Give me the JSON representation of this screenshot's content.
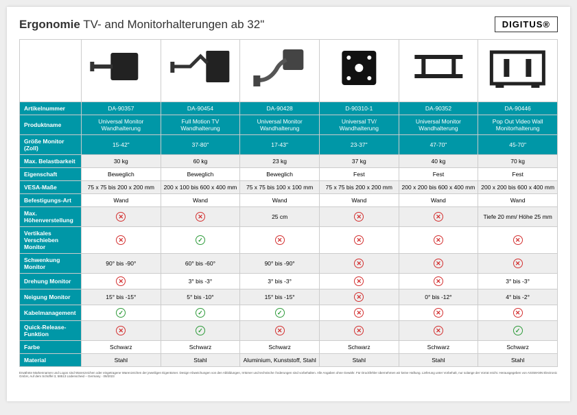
{
  "header": {
    "title_bold": "Ergonomie",
    "title_rest": " TV- and Monitorhalterungen ab 32\"",
    "logo": "DIGITUS®"
  },
  "colors": {
    "teal": "#0097a7",
    "gray": "#eeeeee",
    "white": "#ffffff",
    "border": "#cccccc",
    "yes": "#2e9b3a",
    "no": "#d32f2f"
  },
  "row_labels": [
    "Artikelnummer",
    "Produktname",
    "Größe Monitor (Zoll)",
    "Max. Belastbarkeit",
    "Eigenschaft",
    "VESA-Maße",
    "Befestigungs-Art",
    "Max. Höhenverstellung",
    "Vertikales Verschieben Monitor",
    "Schwenkung Monitor",
    "Drehung Monitor",
    "Neigung Monitor",
    "Kabelmanagement",
    "Quick-Release-Funktion",
    "Farbe",
    "Material"
  ],
  "row_styles": [
    "teal",
    "teal",
    "teal",
    "gray",
    "white",
    "gray",
    "white",
    "gray",
    "white",
    "gray",
    "white",
    "gray",
    "white",
    "gray",
    "white",
    "gray"
  ],
  "products": [
    {
      "article": "DA-90357",
      "name": "Universal Monitor Wandhalterung",
      "size": "15-42\"",
      "load": "30 kg",
      "property": "Beweglich",
      "vesa": "75 x 75 bis 200 x 200 mm",
      "mount": "Wand",
      "height": "NO",
      "vshift": "NO",
      "swivel": "90° bis -90°",
      "rotate": "NO",
      "tilt": "15° bis -15°",
      "cable": "YES",
      "quick": "NO",
      "color": "Schwarz",
      "material": "Stahl"
    },
    {
      "article": "DA-90454",
      "name": "Full Motion TV Wandhalterung",
      "size": "37-80\"",
      "load": "60 kg",
      "property": "Beweglich",
      "vesa": "200 x 100 bis 600 x 400 mm",
      "mount": "Wand",
      "height": "NO",
      "vshift": "YES",
      "swivel": "60° bis -60°",
      "rotate": "3° bis -3°",
      "tilt": "5° bis -10°",
      "cable": "YES",
      "quick": "YES",
      "color": "Schwarz",
      "material": "Stahl"
    },
    {
      "article": "DA-90428",
      "name": "Universal Monitor Wandhalterung",
      "size": "17-43\"",
      "load": "23 kg",
      "property": "Beweglich",
      "vesa": "75 x 75 bis 100 x 100 mm",
      "mount": "Wand",
      "height": "25 cm",
      "vshift": "NO",
      "swivel": "90° bis -90°",
      "rotate": "3° bis -3°",
      "tilt": "15° bis -15°",
      "cable": "YES",
      "quick": "NO",
      "color": "Schwarz",
      "material": "Aluminium, Kunststoff, Stahl"
    },
    {
      "article": "D-90310-1",
      "name": "Universal TV/ Wandhalterung",
      "size": "23-37\"",
      "load": "37 kg",
      "property": "Fest",
      "vesa": "75 x 75 bis 200 x 200 mm",
      "mount": "Wand",
      "height": "NO",
      "vshift": "NO",
      "swivel": "NO",
      "rotate": "NO",
      "tilt": "NO",
      "cable": "NO",
      "quick": "NO",
      "color": "Schwarz",
      "material": "Stahl"
    },
    {
      "article": "DA-90352",
      "name": "Universal Monitor Wandhalterung",
      "size": "47-70\"",
      "load": "40 kg",
      "property": "Fest",
      "vesa": "200 x 200 bis 600 x 400 mm",
      "mount": "Wand",
      "height": "NO",
      "vshift": "NO",
      "swivel": "NO",
      "rotate": "NO",
      "tilt": "0° bis -12°",
      "cable": "NO",
      "quick": "NO",
      "color": "Schwarz",
      "material": "Stahl"
    },
    {
      "article": "DA-90446",
      "name": "Pop Out Video Wall Monitorhalterung",
      "size": "45-70\"",
      "load": "70 kg",
      "property": "Fest",
      "vesa": "200 x 200 bis 600 x 400 mm",
      "mount": "Wand",
      "height": "Tiefe 20 mm/ Höhe 25 mm",
      "vshift": "NO",
      "swivel": "NO",
      "rotate": "3° bis -3°",
      "tilt": "4° bis -2°",
      "cable": "NO",
      "quick": "YES",
      "color": "Schwarz",
      "material": "Stahl"
    }
  ],
  "footnote": "Erwähnte Markennamen und Logos sind Warenzeichen oder eingetragene Warenzeichen der jeweiligen Eigentümer. Design-Abweichungen von den Abbildungen, Irrtümer und technische Änderungen sind vorbehalten. Alle Angaben ohne Gewähr. Für Druckfehler übernehmen wir keine Haftung. Lieferung unter Vorbehalt, nur solange der Vorrat reicht. Herausgegeben von ASSMANN Electronic GmbH, Auf dem Schüffel 3, 58513 Lüdenscheid – Germany · 09/2023"
}
